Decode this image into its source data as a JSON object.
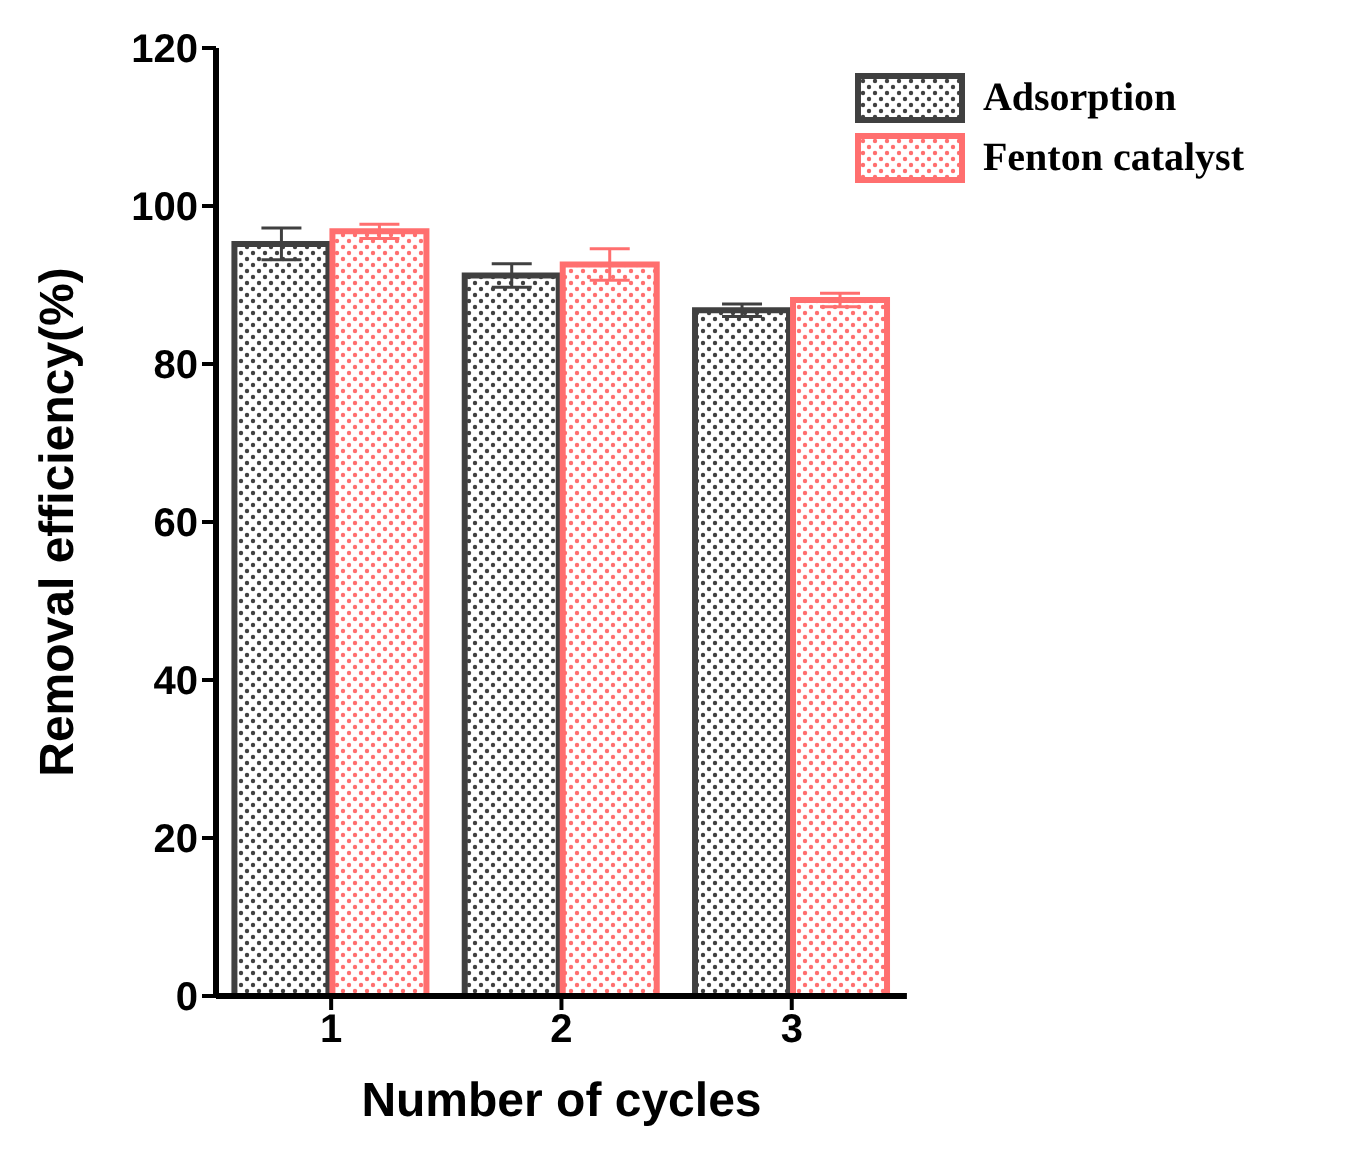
{
  "chart_data": {
    "type": "bar",
    "xlabel": "Number of cycles",
    "ylabel": "Removal efficiency(%)",
    "categories": [
      "1",
      "2",
      "3"
    ],
    "series": [
      {
        "name": "Adsorption",
        "color": "#404040",
        "values": [
          95.2,
          91.2,
          86.8
        ],
        "errors": [
          2.0,
          1.5,
          0.8
        ]
      },
      {
        "name": "Fenton catalyst",
        "color": "#ff6f6f",
        "values": [
          96.8,
          92.6,
          88.1
        ],
        "errors": [
          0.9,
          2.0,
          0.85
        ]
      }
    ],
    "ylim": [
      0,
      120
    ],
    "yticks": [
      0,
      20,
      40,
      60,
      80,
      100,
      120
    ],
    "grid": false,
    "legend": "top right"
  }
}
